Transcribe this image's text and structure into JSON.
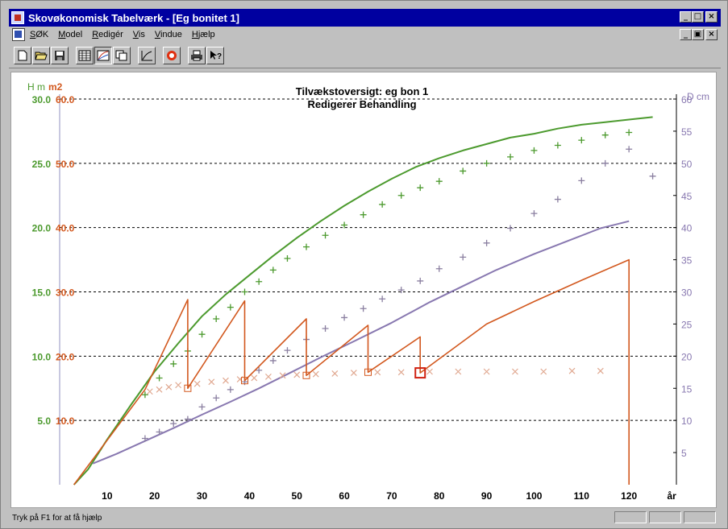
{
  "window": {
    "title": "Skovøkonomisk Tabelværk - [Eg bonitet 1]"
  },
  "caption_buttons": {
    "minimize": "_",
    "restore": "□",
    "close": "×"
  },
  "mdi_buttons": {
    "minimize": "_",
    "restore": "▣",
    "close": "×"
  },
  "menu": {
    "items": [
      "SØK",
      "Model",
      "Redigér",
      "Vis",
      "Vindue",
      "Hjælp"
    ]
  },
  "toolbar": {
    "buttons": [
      "new-icon",
      "open-icon",
      "save-icon",
      "table-icon",
      "graph-icon",
      "copy-icon",
      "curve-icon",
      "stop-icon",
      "print-icon",
      "context-help-icon"
    ]
  },
  "status": {
    "text": "Tryk på F1 for at få hjælp"
  },
  "colors": {
    "height_green": "#4c9a2e",
    "basal_orange": "#d2581e",
    "diameter_purple": "#8878b0",
    "plus_gray": "#8a7fa0",
    "x_tan": "#e0a890"
  },
  "chart_data": {
    "type": "line",
    "title": "Tilvækstoversigt: eg bon 1",
    "subtitle": "Redigerer Behandling",
    "left_axis_label": "H m",
    "left_axis2_label": "m2",
    "right_axis_label": "D cm",
    "xlabel": "år",
    "x_ticks": [
      10,
      20,
      30,
      40,
      50,
      60,
      70,
      80,
      90,
      100,
      110,
      120
    ],
    "xlim": [
      0,
      130
    ],
    "y_left_ticks": [
      "5.0",
      "10.0",
      "15.0",
      "20.0",
      "25.0",
      "30.0"
    ],
    "y_left2_ticks": [
      "10.0",
      "20.0",
      "30.0",
      "40.0",
      "50.0",
      "60.0"
    ],
    "y_right_ticks": [
      5,
      10,
      15,
      20,
      25,
      30,
      35,
      40,
      45,
      50,
      55,
      60
    ],
    "ylim_height": [
      0,
      30
    ],
    "ylim_basal": [
      0,
      60
    ],
    "ylim_diameter": [
      0,
      60
    ],
    "series": [
      {
        "kind": "height_line",
        "axis": "height",
        "x": [
          3,
          6,
          10,
          15,
          20,
          25,
          30,
          35,
          40,
          45,
          50,
          55,
          60,
          65,
          70,
          75,
          80,
          85,
          90,
          95,
          100,
          105,
          110,
          115,
          120,
          125
        ],
        "y": [
          0,
          1.2,
          3.5,
          6.2,
          8.8,
          11.0,
          13.1,
          14.8,
          16.3,
          17.8,
          19.2,
          20.5,
          21.7,
          22.8,
          23.8,
          24.7,
          25.4,
          26.0,
          26.5,
          27.0,
          27.3,
          27.7,
          28.0,
          28.2,
          28.4,
          28.6
        ]
      },
      {
        "kind": "height_markers",
        "axis": "height",
        "x": [
          18,
          21,
          24,
          27,
          30,
          33,
          36,
          39,
          42,
          45,
          48,
          52,
          56,
          60,
          64,
          68,
          72,
          76,
          80,
          85,
          90,
          95,
          100,
          105,
          110,
          115,
          120
        ],
        "y": [
          7.0,
          8.3,
          9.4,
          10.4,
          11.7,
          12.9,
          13.8,
          15.0,
          15.8,
          16.7,
          17.6,
          18.5,
          19.4,
          20.2,
          21.0,
          21.8,
          22.5,
          23.1,
          23.6,
          24.4,
          25.0,
          25.5,
          26.0,
          26.4,
          26.8,
          27.2,
          27.4
        ]
      },
      {
        "kind": "diameter_line",
        "axis": "diameter",
        "x": [
          7,
          12,
          18,
          24,
          30,
          36,
          42,
          48,
          55,
          62,
          70,
          78,
          85,
          92,
          100,
          107,
          114,
          120
        ],
        "y": [
          3.3,
          4.8,
          6.8,
          8.8,
          10.9,
          12.9,
          15.0,
          17.2,
          19.8,
          22.3,
          25.2,
          28.4,
          30.9,
          33.4,
          35.9,
          37.9,
          39.9,
          41.0
        ]
      },
      {
        "kind": "diameter_markers",
        "axis": "diameter",
        "x": [
          18,
          21,
          24,
          27,
          30,
          33,
          36,
          39,
          42,
          45,
          48,
          52,
          56,
          60,
          64,
          68,
          72,
          76,
          80,
          85,
          90,
          95,
          100,
          105,
          110,
          115,
          120,
          125
        ],
        "y": [
          7.2,
          8.2,
          9.5,
          10.2,
          12.1,
          13.5,
          14.8,
          16.0,
          17.8,
          19.3,
          20.9,
          22.6,
          24.3,
          26.0,
          27.4,
          28.9,
          30.3,
          31.7,
          33.6,
          35.4,
          37.6,
          39.9,
          42.2,
          44.4,
          47.3,
          50.0,
          52.2,
          48.0
        ]
      },
      {
        "kind": "basal_area_line",
        "axis": "basal",
        "x": [
          3,
          18,
          27,
          27,
          39,
          39,
          52,
          52,
          65,
          65,
          76,
          76,
          90,
          100,
          110,
          120,
          120
        ],
        "y": [
          0,
          14.8,
          28.8,
          15.0,
          28.6,
          16.2,
          25.8,
          17.0,
          24.8,
          17.5,
          23.0,
          17.4,
          25.0,
          28.5,
          31.8,
          35.0,
          0
        ]
      },
      {
        "kind": "basal_area_thinned_markers",
        "axis": "basal",
        "x": [
          19,
          21,
          23,
          25,
          29,
          32,
          35,
          38,
          41,
          44,
          47,
          50,
          54,
          58,
          62,
          67,
          72,
          78,
          84,
          90,
          96,
          102,
          108,
          114
        ],
        "y": [
          14.5,
          14.8,
          15.2,
          15.5,
          15.7,
          16.0,
          16.2,
          16.4,
          16.6,
          16.8,
          17.0,
          17.1,
          17.2,
          17.3,
          17.4,
          17.5,
          17.5,
          17.6,
          17.6,
          17.6,
          17.6,
          17.6,
          17.7,
          17.7
        ]
      },
      {
        "kind": "thinning_points",
        "axis": "basal",
        "x": [
          27,
          39,
          52,
          65,
          76
        ],
        "y": [
          15.0,
          16.2,
          17.0,
          17.5,
          17.4
        ],
        "selected_index": 4
      }
    ]
  }
}
